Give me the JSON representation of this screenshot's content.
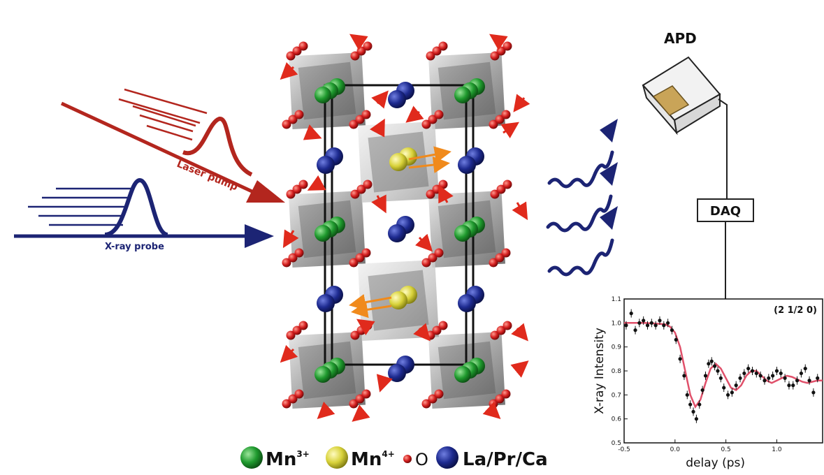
{
  "labels": {
    "laser_pump": "Laser pump",
    "xray_probe": "X-ray probe",
    "apd": "APD",
    "daq": "DAQ"
  },
  "legend": {
    "mn3": "Mn",
    "mn3_sup": "3+",
    "mn4": "Mn",
    "mn4_sup": "4+",
    "o": "O",
    "la": "La/Pr/Ca"
  },
  "colors": {
    "laser": "#b3261e",
    "xray": "#1c2474",
    "mn3": "#1f9a2e",
    "mn4": "#d8d23a",
    "oxygen": "#d41f1f",
    "la": "#1d2a8f",
    "fit": "#e0506a"
  },
  "chart_data": {
    "type": "scatter",
    "annotation": "(2 1/2 0)",
    "xlabel": "delay (ps)",
    "ylabel": "X-ray Intensity",
    "xlim": [
      -0.5,
      1.45
    ],
    "ylim": [
      0.5,
      1.1
    ],
    "xticks": [
      "-0.5",
      "0.0",
      "0.5",
      "1.0"
    ],
    "yticks": [
      "0.5",
      "0.6",
      "0.7",
      "0.8",
      "0.9",
      "1.0",
      "1.1"
    ],
    "grid": false,
    "series": [
      {
        "kind": "points",
        "x": [
          -0.48,
          -0.43,
          -0.39,
          -0.35,
          -0.31,
          -0.27,
          -0.23,
          -0.19,
          -0.15,
          -0.11,
          -0.07,
          -0.03,
          0.01,
          0.05,
          0.09,
          0.12,
          0.15,
          0.18,
          0.21,
          0.24,
          0.27,
          0.3,
          0.33,
          0.36,
          0.39,
          0.42,
          0.45,
          0.48,
          0.52,
          0.56,
          0.6,
          0.64,
          0.68,
          0.72,
          0.76,
          0.8,
          0.84,
          0.88,
          0.92,
          0.96,
          1.0,
          1.04,
          1.08,
          1.12,
          1.16,
          1.2,
          1.24,
          1.28,
          1.32,
          1.36,
          1.4
        ],
        "y": [
          0.99,
          1.04,
          0.97,
          1.0,
          1.01,
          0.99,
          1.0,
          0.99,
          1.01,
          0.99,
          1.0,
          0.97,
          0.93,
          0.85,
          0.78,
          0.7,
          0.66,
          0.63,
          0.6,
          0.66,
          0.72,
          0.78,
          0.83,
          0.84,
          0.82,
          0.8,
          0.77,
          0.73,
          0.7,
          0.71,
          0.74,
          0.77,
          0.79,
          0.81,
          0.8,
          0.79,
          0.78,
          0.76,
          0.77,
          0.78,
          0.8,
          0.79,
          0.77,
          0.74,
          0.74,
          0.76,
          0.79,
          0.81,
          0.76,
          0.71,
          0.77
        ]
      },
      {
        "kind": "fit",
        "x": [
          -0.5,
          -0.3,
          -0.1,
          -0.05,
          0.0,
          0.05,
          0.1,
          0.15,
          0.2,
          0.25,
          0.3,
          0.35,
          0.4,
          0.45,
          0.5,
          0.55,
          0.6,
          0.65,
          0.7,
          0.75,
          0.8,
          0.85,
          0.9,
          0.95,
          1.0,
          1.05,
          1.1,
          1.15,
          1.2,
          1.25,
          1.3,
          1.35,
          1.4,
          1.45
        ],
        "y": [
          1.0,
          1.0,
          0.995,
          0.985,
          0.96,
          0.9,
          0.8,
          0.7,
          0.65,
          0.68,
          0.75,
          0.81,
          0.83,
          0.81,
          0.77,
          0.73,
          0.72,
          0.74,
          0.78,
          0.8,
          0.8,
          0.78,
          0.76,
          0.75,
          0.76,
          0.77,
          0.78,
          0.775,
          0.765,
          0.755,
          0.75,
          0.755,
          0.76,
          0.76
        ]
      }
    ]
  }
}
